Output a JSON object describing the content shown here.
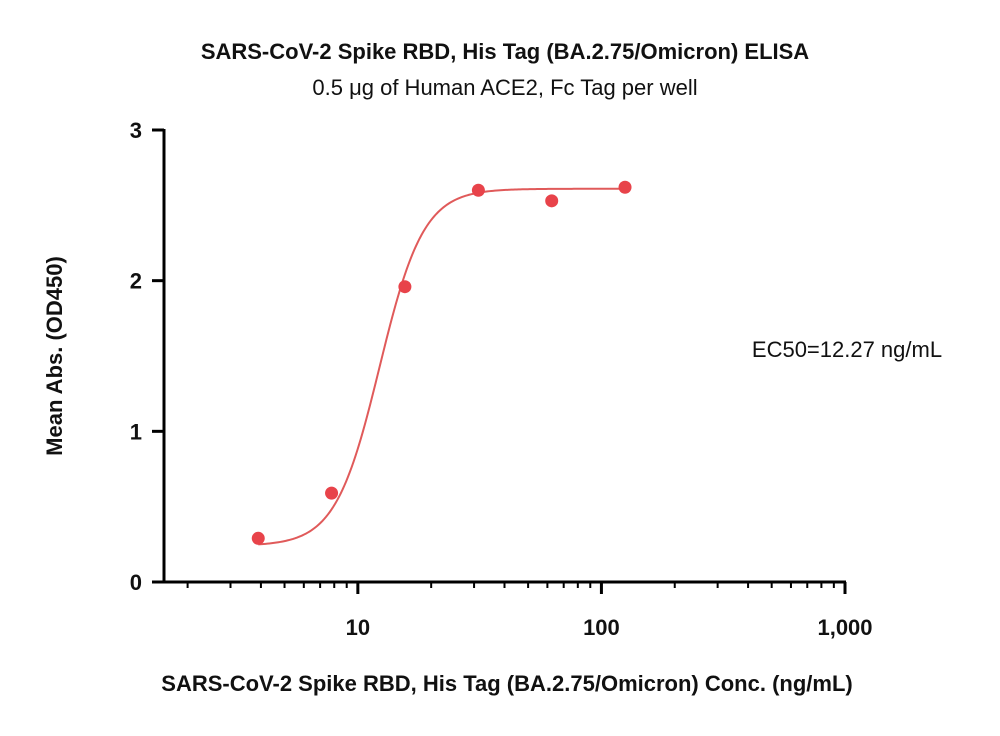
{
  "chart_data": {
    "type": "scatter",
    "title": "SARS-CoV-2 Spike RBD, His Tag (BA.2.75/Omicron) ELISA",
    "subtitle": "0.5 μg of Human ACE2, Fc Tag per well",
    "xlabel": "SARS-CoV-2 Spike RBD, His Tag (BA.2.75/Omicron) Conc. (ng/mL)",
    "ylabel": "Mean Abs. (OD450)",
    "x_scale": "log",
    "xlim": [
      1.6,
      1000
    ],
    "ylim": [
      0,
      3
    ],
    "x_ticks": [
      10,
      100,
      1000
    ],
    "x_tick_labels": [
      "10",
      "100",
      "1,000"
    ],
    "y_ticks": [
      0,
      1,
      2,
      3
    ],
    "y_tick_labels": [
      "0",
      "1",
      "2",
      "3"
    ],
    "grid": false,
    "colors": {
      "series": "#e8434a",
      "curve": "#e05a5a"
    },
    "series": [
      {
        "x": [
          3.9,
          7.8,
          15.6,
          31.25,
          62.5,
          125
        ],
        "y": [
          0.29,
          0.59,
          1.96,
          2.6,
          2.53,
          2.62
        ]
      }
    ],
    "fit": {
      "model": "4PL",
      "bottom": 0.24,
      "top": 2.61,
      "ec50": 12.27,
      "hill": 4.8,
      "x_range": [
        3.9,
        125
      ]
    },
    "annotations": [
      {
        "text": "EC50=12.27 ng/mL"
      }
    ]
  }
}
